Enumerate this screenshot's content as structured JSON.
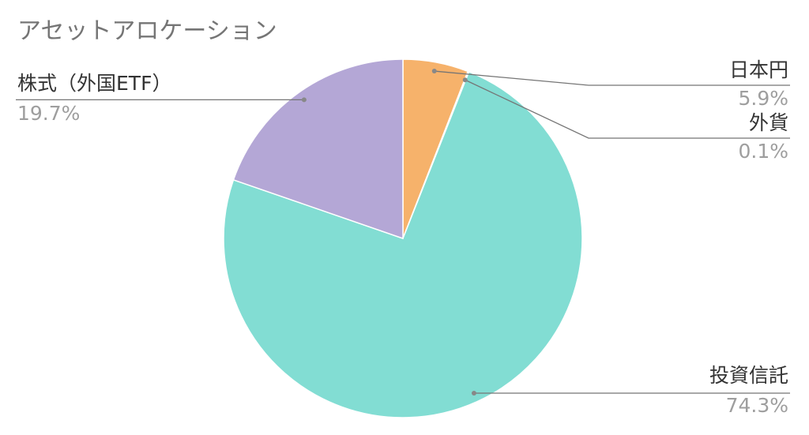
{
  "chart_data": {
    "type": "pie",
    "title": "アセットアロケーション",
    "start": "top",
    "direction": "clockwise",
    "slices": [
      {
        "label": "日本円",
        "value": 5.9,
        "pct_label": "5.9%",
        "color": "#f6b26b"
      },
      {
        "label": "外貨",
        "value": 0.1,
        "pct_label": "0.1%",
        "color": "#f4a9a0"
      },
      {
        "label": "投資信託",
        "value": 74.3,
        "pct_label": "74.3%",
        "color": "#82ddd3"
      },
      {
        "label": "株式（外国ETF）",
        "value": 19.7,
        "pct_label": "19.7%",
        "color": "#b4a7d6"
      }
    ],
    "legend": "none",
    "leader_line_color": "#757575"
  }
}
